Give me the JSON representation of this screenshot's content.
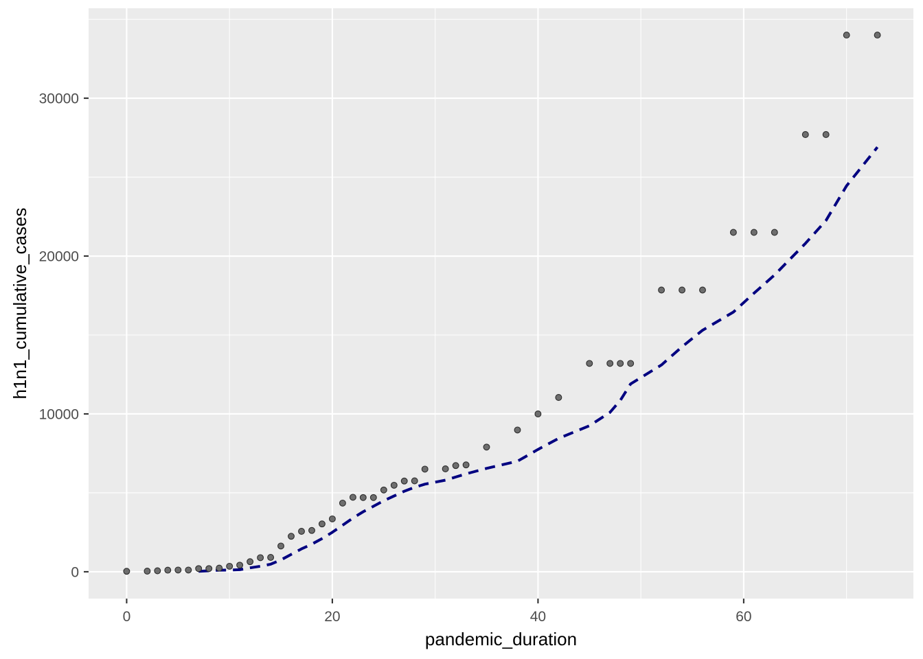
{
  "chart_data": {
    "type": "scatter",
    "title": "",
    "xlabel": "pandemic_duration",
    "ylabel": "h1n1_cumulative_cases",
    "xlim": [
      -3.7,
      76.5
    ],
    "ylim": [
      -1700,
      35700
    ],
    "x_ticks": [
      0,
      20,
      40,
      60
    ],
    "x_tick_labels": [
      "0",
      "20",
      "40",
      "60"
    ],
    "y_ticks": [
      0,
      10000,
      20000,
      30000
    ],
    "y_tick_labels": [
      "0",
      "10000",
      "20000",
      "30000"
    ],
    "grid": true,
    "background_color": "#ebebeb",
    "series": [
      {
        "kind": "points",
        "color": "#6e6e6e",
        "x": [
          0,
          2,
          3,
          4,
          5,
          6,
          7,
          8,
          9,
          10,
          11,
          12,
          13,
          14,
          15,
          16,
          17,
          18,
          19,
          20,
          21,
          22,
          23,
          24,
          25,
          26,
          27,
          28,
          29,
          31,
          32,
          33,
          35,
          38,
          40,
          42,
          45,
          47,
          48,
          49,
          52,
          54,
          56,
          59,
          61,
          63,
          66,
          68,
          70,
          73
        ],
        "y": [
          30,
          40,
          60,
          100,
          110,
          110,
          200,
          200,
          230,
          350,
          420,
          640,
          890,
          910,
          1630,
          2250,
          2560,
          2620,
          3030,
          3350,
          4350,
          4720,
          4700,
          4700,
          5180,
          5480,
          5750,
          5760,
          6500,
          6520,
          6730,
          6770,
          7900,
          8980,
          10000,
          11040,
          13200,
          13200,
          13200,
          13200,
          17850,
          17850,
          17850,
          21500,
          21500,
          21500,
          27700,
          27700,
          34000,
          34000
        ]
      },
      {
        "kind": "line",
        "style": "dashed",
        "color": "#000080",
        "x": [
          7,
          8,
          9,
          10,
          11,
          12,
          13,
          14,
          15,
          16,
          17,
          18,
          19,
          20,
          21,
          22,
          23,
          24,
          25,
          26,
          27,
          28,
          29,
          31,
          32,
          33,
          35,
          38,
          40,
          42,
          45,
          47,
          48,
          49,
          52,
          54,
          56,
          59,
          61,
          63,
          66,
          68,
          70,
          73
        ],
        "y": [
          30,
          60,
          100,
          110,
          130,
          250,
          350,
          480,
          750,
          1100,
          1450,
          1750,
          2100,
          2500,
          2950,
          3400,
          3800,
          4150,
          4500,
          4800,
          5100,
          5350,
          5550,
          5800,
          6000,
          6200,
          6550,
          7000,
          7750,
          8450,
          9250,
          10100,
          10850,
          11900,
          13100,
          14250,
          15300,
          16450,
          17650,
          18800,
          20800,
          22250,
          24450,
          26900
        ]
      }
    ]
  }
}
